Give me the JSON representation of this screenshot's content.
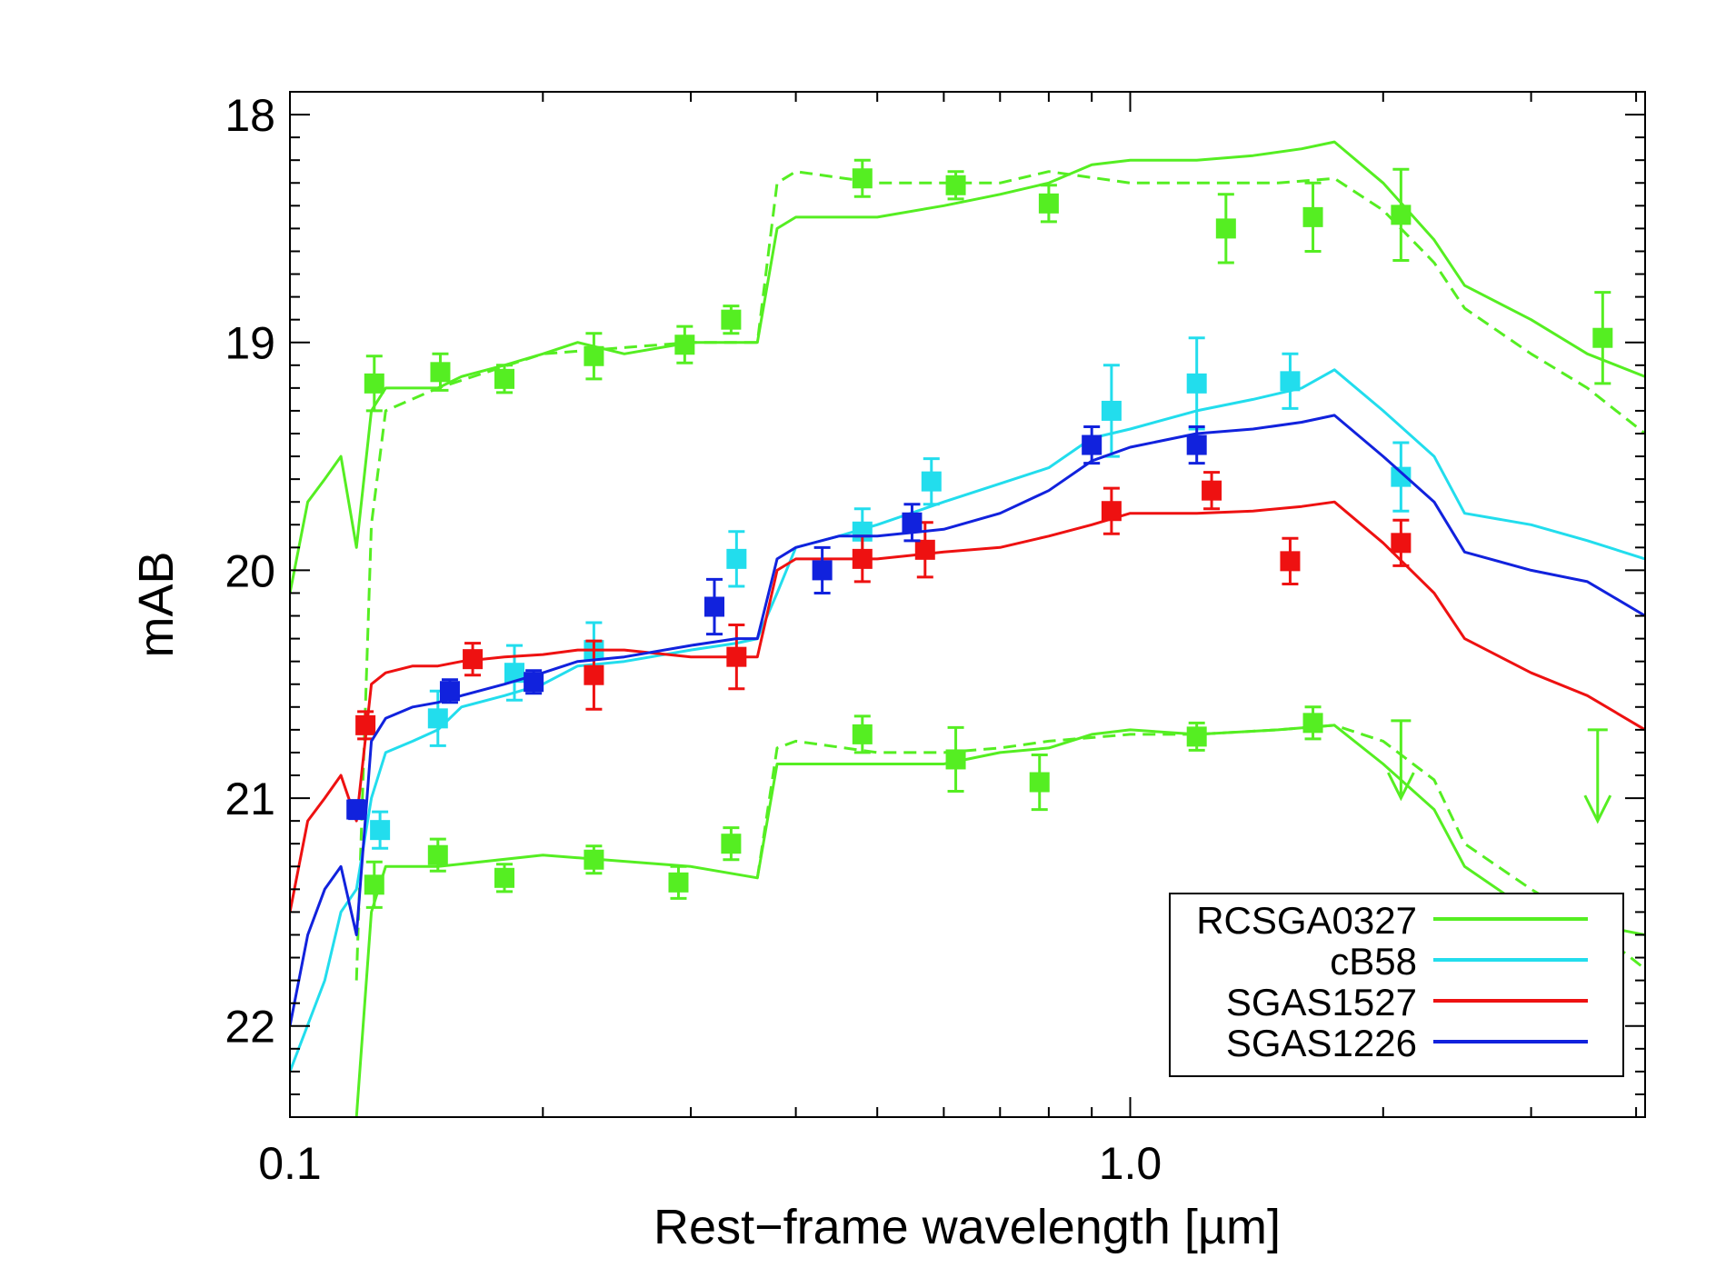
{
  "chart_data": {
    "type": "line",
    "title": "",
    "xlabel": "Rest−frame wavelength [µm]",
    "ylabel": "mAB",
    "xscale": "log",
    "xlim": [
      0.1,
      4.1
    ],
    "ylim": [
      22.4,
      17.9
    ],
    "y_inverted": true,
    "x_tick_labels": [
      {
        "value": 0.1,
        "label": "0.1"
      },
      {
        "value": 1.0,
        "label": "1.0"
      }
    ],
    "y_tick_labels": [
      {
        "value": 18,
        "label": "18"
      },
      {
        "value": 19,
        "label": "19"
      },
      {
        "value": 20,
        "label": "20"
      },
      {
        "value": 21,
        "label": "21"
      },
      {
        "value": 22,
        "label": "22"
      }
    ],
    "legend_position": "bottom-right",
    "series": [
      {
        "name": "RCSGA0327",
        "color": "#55ee22",
        "models": [
          {
            "style": "solid",
            "x": [
              0.1,
              0.105,
              0.11,
              0.115,
              0.12,
              0.125,
              0.13,
              0.14,
              0.15,
              0.16,
              0.18,
              0.2,
              0.22,
              0.25,
              0.3,
              0.33,
              0.36,
              0.38,
              0.4,
              0.45,
              0.5,
              0.6,
              0.7,
              0.8,
              0.9,
              1.0,
              1.2,
              1.4,
              1.6,
              1.75,
              2.0,
              2.3,
              2.5,
              3.0,
              3.5,
              4.1
            ],
            "y": [
              20.1,
              19.7,
              19.6,
              19.5,
              19.9,
              19.3,
              19.2,
              19.2,
              19.2,
              19.15,
              19.1,
              19.05,
              19.0,
              19.05,
              19.0,
              19.0,
              19.0,
              18.5,
              18.45,
              18.45,
              18.45,
              18.4,
              18.35,
              18.3,
              18.22,
              18.2,
              18.2,
              18.18,
              18.15,
              18.12,
              18.3,
              18.55,
              18.75,
              18.9,
              19.05,
              19.15
            ]
          },
          {
            "style": "dashed",
            "x": [
              0.12,
              0.125,
              0.13,
              0.15,
              0.2,
              0.3,
              0.36,
              0.38,
              0.4,
              0.5,
              0.6,
              0.7,
              0.8,
              1.0,
              1.2,
              1.5,
              1.75,
              2.0,
              2.3,
              2.5,
              3.0,
              3.5,
              4.1
            ],
            "y": [
              21.8,
              19.8,
              19.3,
              19.2,
              19.05,
              19.0,
              19.0,
              18.3,
              18.25,
              18.3,
              18.3,
              18.3,
              18.25,
              18.3,
              18.3,
              18.3,
              18.28,
              18.42,
              18.65,
              18.85,
              19.05,
              19.2,
              19.4
            ]
          },
          {
            "style": "solid",
            "x": [
              0.12,
              0.125,
              0.13,
              0.15,
              0.2,
              0.3,
              0.36,
              0.38,
              0.4,
              0.5,
              0.6,
              0.7,
              0.8,
              0.9,
              1.0,
              1.2,
              1.5,
              1.75,
              2.0,
              2.3,
              2.5,
              3.0,
              3.5,
              4.1
            ],
            "y": [
              22.4,
              21.5,
              21.3,
              21.3,
              21.25,
              21.3,
              21.35,
              20.85,
              20.85,
              20.85,
              20.85,
              20.8,
              20.78,
              20.72,
              20.7,
              20.72,
              20.7,
              20.68,
              20.85,
              21.05,
              21.3,
              21.5,
              21.55,
              21.6
            ]
          },
          {
            "style": "dashed",
            "x": [
              0.36,
              0.38,
              0.4,
              0.5,
              0.6,
              0.7,
              0.8,
              1.0,
              1.2,
              1.5,
              1.75,
              2.0,
              2.3,
              2.5,
              3.0,
              3.5,
              4.1
            ],
            "y": [
              21.35,
              20.78,
              20.75,
              20.8,
              20.8,
              20.78,
              20.75,
              20.72,
              20.72,
              20.7,
              20.68,
              20.75,
              20.92,
              21.2,
              21.4,
              21.55,
              21.75
            ]
          }
        ],
        "points": [
          {
            "x": 0.126,
            "y": 19.18,
            "err": 0.12
          },
          {
            "x": 0.151,
            "y": 19.13,
            "err": 0.08
          },
          {
            "x": 0.18,
            "y": 19.16,
            "err": 0.06
          },
          {
            "x": 0.23,
            "y": 19.06,
            "err": 0.1
          },
          {
            "x": 0.295,
            "y": 19.01,
            "err": 0.08
          },
          {
            "x": 0.335,
            "y": 18.9,
            "err": 0.06
          },
          {
            "x": 0.48,
            "y": 18.28,
            "err": 0.08
          },
          {
            "x": 0.62,
            "y": 18.31,
            "err": 0.06
          },
          {
            "x": 0.8,
            "y": 18.39,
            "err": 0.08
          },
          {
            "x": 1.3,
            "y": 18.5,
            "err": 0.15
          },
          {
            "x": 1.65,
            "y": 18.45,
            "err": 0.15
          },
          {
            "x": 2.1,
            "y": 18.44,
            "err": 0.2
          },
          {
            "x": 3.65,
            "y": 18.98,
            "err": 0.2
          },
          {
            "x": 0.126,
            "y": 21.38,
            "err": 0.1
          },
          {
            "x": 0.15,
            "y": 21.25,
            "err": 0.07
          },
          {
            "x": 0.18,
            "y": 21.35,
            "err": 0.06
          },
          {
            "x": 0.23,
            "y": 21.27,
            "err": 0.06
          },
          {
            "x": 0.29,
            "y": 21.37,
            "err": 0.07
          },
          {
            "x": 0.335,
            "y": 21.2,
            "err": 0.07
          },
          {
            "x": 0.48,
            "y": 20.72,
            "err": 0.08
          },
          {
            "x": 0.62,
            "y": 20.83,
            "err": 0.14
          },
          {
            "x": 0.78,
            "y": 20.93,
            "err": 0.12
          },
          {
            "x": 1.2,
            "y": 20.73,
            "err": 0.06
          },
          {
            "x": 1.65,
            "y": 20.67,
            "err": 0.07
          }
        ],
        "upper_limits": [
          {
            "x": 2.1,
            "y": 20.66,
            "to": 21.0
          },
          {
            "x": 3.6,
            "y": 20.7,
            "to": 21.1
          }
        ]
      },
      {
        "name": "cB58",
        "color": "#22dded",
        "models": [
          {
            "style": "solid",
            "x": [
              0.1,
              0.11,
              0.115,
              0.12,
              0.125,
              0.13,
              0.14,
              0.15,
              0.16,
              0.18,
              0.2,
              0.22,
              0.25,
              0.3,
              0.34,
              0.36,
              0.38,
              0.4,
              0.45,
              0.5,
              0.6,
              0.7,
              0.8,
              0.9,
              1.0,
              1.2,
              1.4,
              1.6,
              1.75,
              2.0,
              2.3,
              2.5,
              3.0,
              3.5,
              4.1
            ],
            "y": [
              22.2,
              21.8,
              21.5,
              21.4,
              21.0,
              20.8,
              20.75,
              20.7,
              20.6,
              20.55,
              20.5,
              20.42,
              20.4,
              20.35,
              20.32,
              20.3,
              20.1,
              19.9,
              19.85,
              19.8,
              19.7,
              19.62,
              19.55,
              19.42,
              19.38,
              19.3,
              19.25,
              19.2,
              19.12,
              19.3,
              19.5,
              19.75,
              19.8,
              19.87,
              19.95
            ]
          }
        ],
        "points": [
          {
            "x": 0.128,
            "y": 21.14,
            "err": 0.08
          },
          {
            "x": 0.15,
            "y": 20.65,
            "err": 0.12
          },
          {
            "x": 0.185,
            "y": 20.45,
            "err": 0.12
          },
          {
            "x": 0.23,
            "y": 20.35,
            "err": 0.12
          },
          {
            "x": 0.34,
            "y": 19.95,
            "err": 0.12
          },
          {
            "x": 0.48,
            "y": 19.83,
            "err": 0.1
          },
          {
            "x": 0.58,
            "y": 19.61,
            "err": 0.1
          },
          {
            "x": 0.95,
            "y": 19.3,
            "err": 0.2
          },
          {
            "x": 1.2,
            "y": 19.18,
            "err": 0.2
          },
          {
            "x": 1.55,
            "y": 19.17,
            "err": 0.12
          },
          {
            "x": 2.1,
            "y": 19.59,
            "err": 0.15
          }
        ],
        "upper_limits": []
      },
      {
        "name": "SGAS1527",
        "color": "#ee1111",
        "models": [
          {
            "style": "solid",
            "x": [
              0.1,
              0.105,
              0.11,
              0.115,
              0.12,
              0.125,
              0.13,
              0.14,
              0.15,
              0.16,
              0.18,
              0.2,
              0.22,
              0.25,
              0.3,
              0.34,
              0.36,
              0.38,
              0.4,
              0.45,
              0.5,
              0.6,
              0.7,
              0.8,
              0.9,
              1.0,
              1.2,
              1.4,
              1.6,
              1.75,
              2.0,
              2.3,
              2.5,
              3.0,
              3.5,
              4.1
            ],
            "y": [
              21.5,
              21.1,
              21.0,
              20.9,
              21.1,
              20.5,
              20.45,
              20.42,
              20.42,
              20.4,
              20.38,
              20.37,
              20.35,
              20.35,
              20.38,
              20.38,
              20.38,
              20.0,
              19.95,
              19.95,
              19.95,
              19.92,
              19.9,
              19.85,
              19.8,
              19.75,
              19.75,
              19.74,
              19.72,
              19.7,
              19.88,
              20.1,
              20.3,
              20.45,
              20.55,
              20.7
            ]
          }
        ],
        "points": [
          {
            "x": 0.123,
            "y": 20.68,
            "err": 0.06
          },
          {
            "x": 0.165,
            "y": 20.39,
            "err": 0.07
          },
          {
            "x": 0.23,
            "y": 20.46,
            "err": 0.15
          },
          {
            "x": 0.34,
            "y": 20.38,
            "err": 0.14
          },
          {
            "x": 0.48,
            "y": 19.95,
            "err": 0.1
          },
          {
            "x": 0.57,
            "y": 19.91,
            "err": 0.12
          },
          {
            "x": 0.95,
            "y": 19.74,
            "err": 0.1
          },
          {
            "x": 1.25,
            "y": 19.65,
            "err": 0.08
          },
          {
            "x": 1.55,
            "y": 19.96,
            "err": 0.1
          },
          {
            "x": 2.1,
            "y": 19.88,
            "err": 0.1
          }
        ],
        "upper_limits": []
      },
      {
        "name": "SGAS1226",
        "color": "#1122dd",
        "models": [
          {
            "style": "solid",
            "x": [
              0.1,
              0.105,
              0.11,
              0.115,
              0.12,
              0.125,
              0.13,
              0.14,
              0.15,
              0.16,
              0.18,
              0.2,
              0.22,
              0.25,
              0.3,
              0.34,
              0.36,
              0.38,
              0.4,
              0.45,
              0.5,
              0.6,
              0.7,
              0.8,
              0.9,
              1.0,
              1.2,
              1.4,
              1.6,
              1.75,
              2.0,
              2.3,
              2.5,
              3.0,
              3.5,
              4.1
            ],
            "y": [
              22.0,
              21.6,
              21.4,
              21.3,
              21.6,
              20.75,
              20.65,
              20.6,
              20.58,
              20.55,
              20.5,
              20.45,
              20.4,
              20.38,
              20.33,
              20.3,
              20.3,
              19.95,
              19.9,
              19.85,
              19.85,
              19.82,
              19.75,
              19.65,
              19.52,
              19.46,
              19.4,
              19.38,
              19.35,
              19.32,
              19.5,
              19.7,
              19.92,
              20.0,
              20.05,
              20.2
            ]
          }
        ],
        "points": [
          {
            "x": 0.12,
            "y": 21.05,
            "err": 0.04
          },
          {
            "x": 0.155,
            "y": 20.53,
            "err": 0.05
          },
          {
            "x": 0.195,
            "y": 20.49,
            "err": 0.05
          },
          {
            "x": 0.32,
            "y": 20.16,
            "err": 0.12
          },
          {
            "x": 0.43,
            "y": 20.0,
            "err": 0.1
          },
          {
            "x": 0.55,
            "y": 19.79,
            "err": 0.08
          },
          {
            "x": 0.9,
            "y": 19.45,
            "err": 0.08
          },
          {
            "x": 1.2,
            "y": 19.45,
            "err": 0.08
          }
        ],
        "upper_limits": []
      }
    ]
  }
}
